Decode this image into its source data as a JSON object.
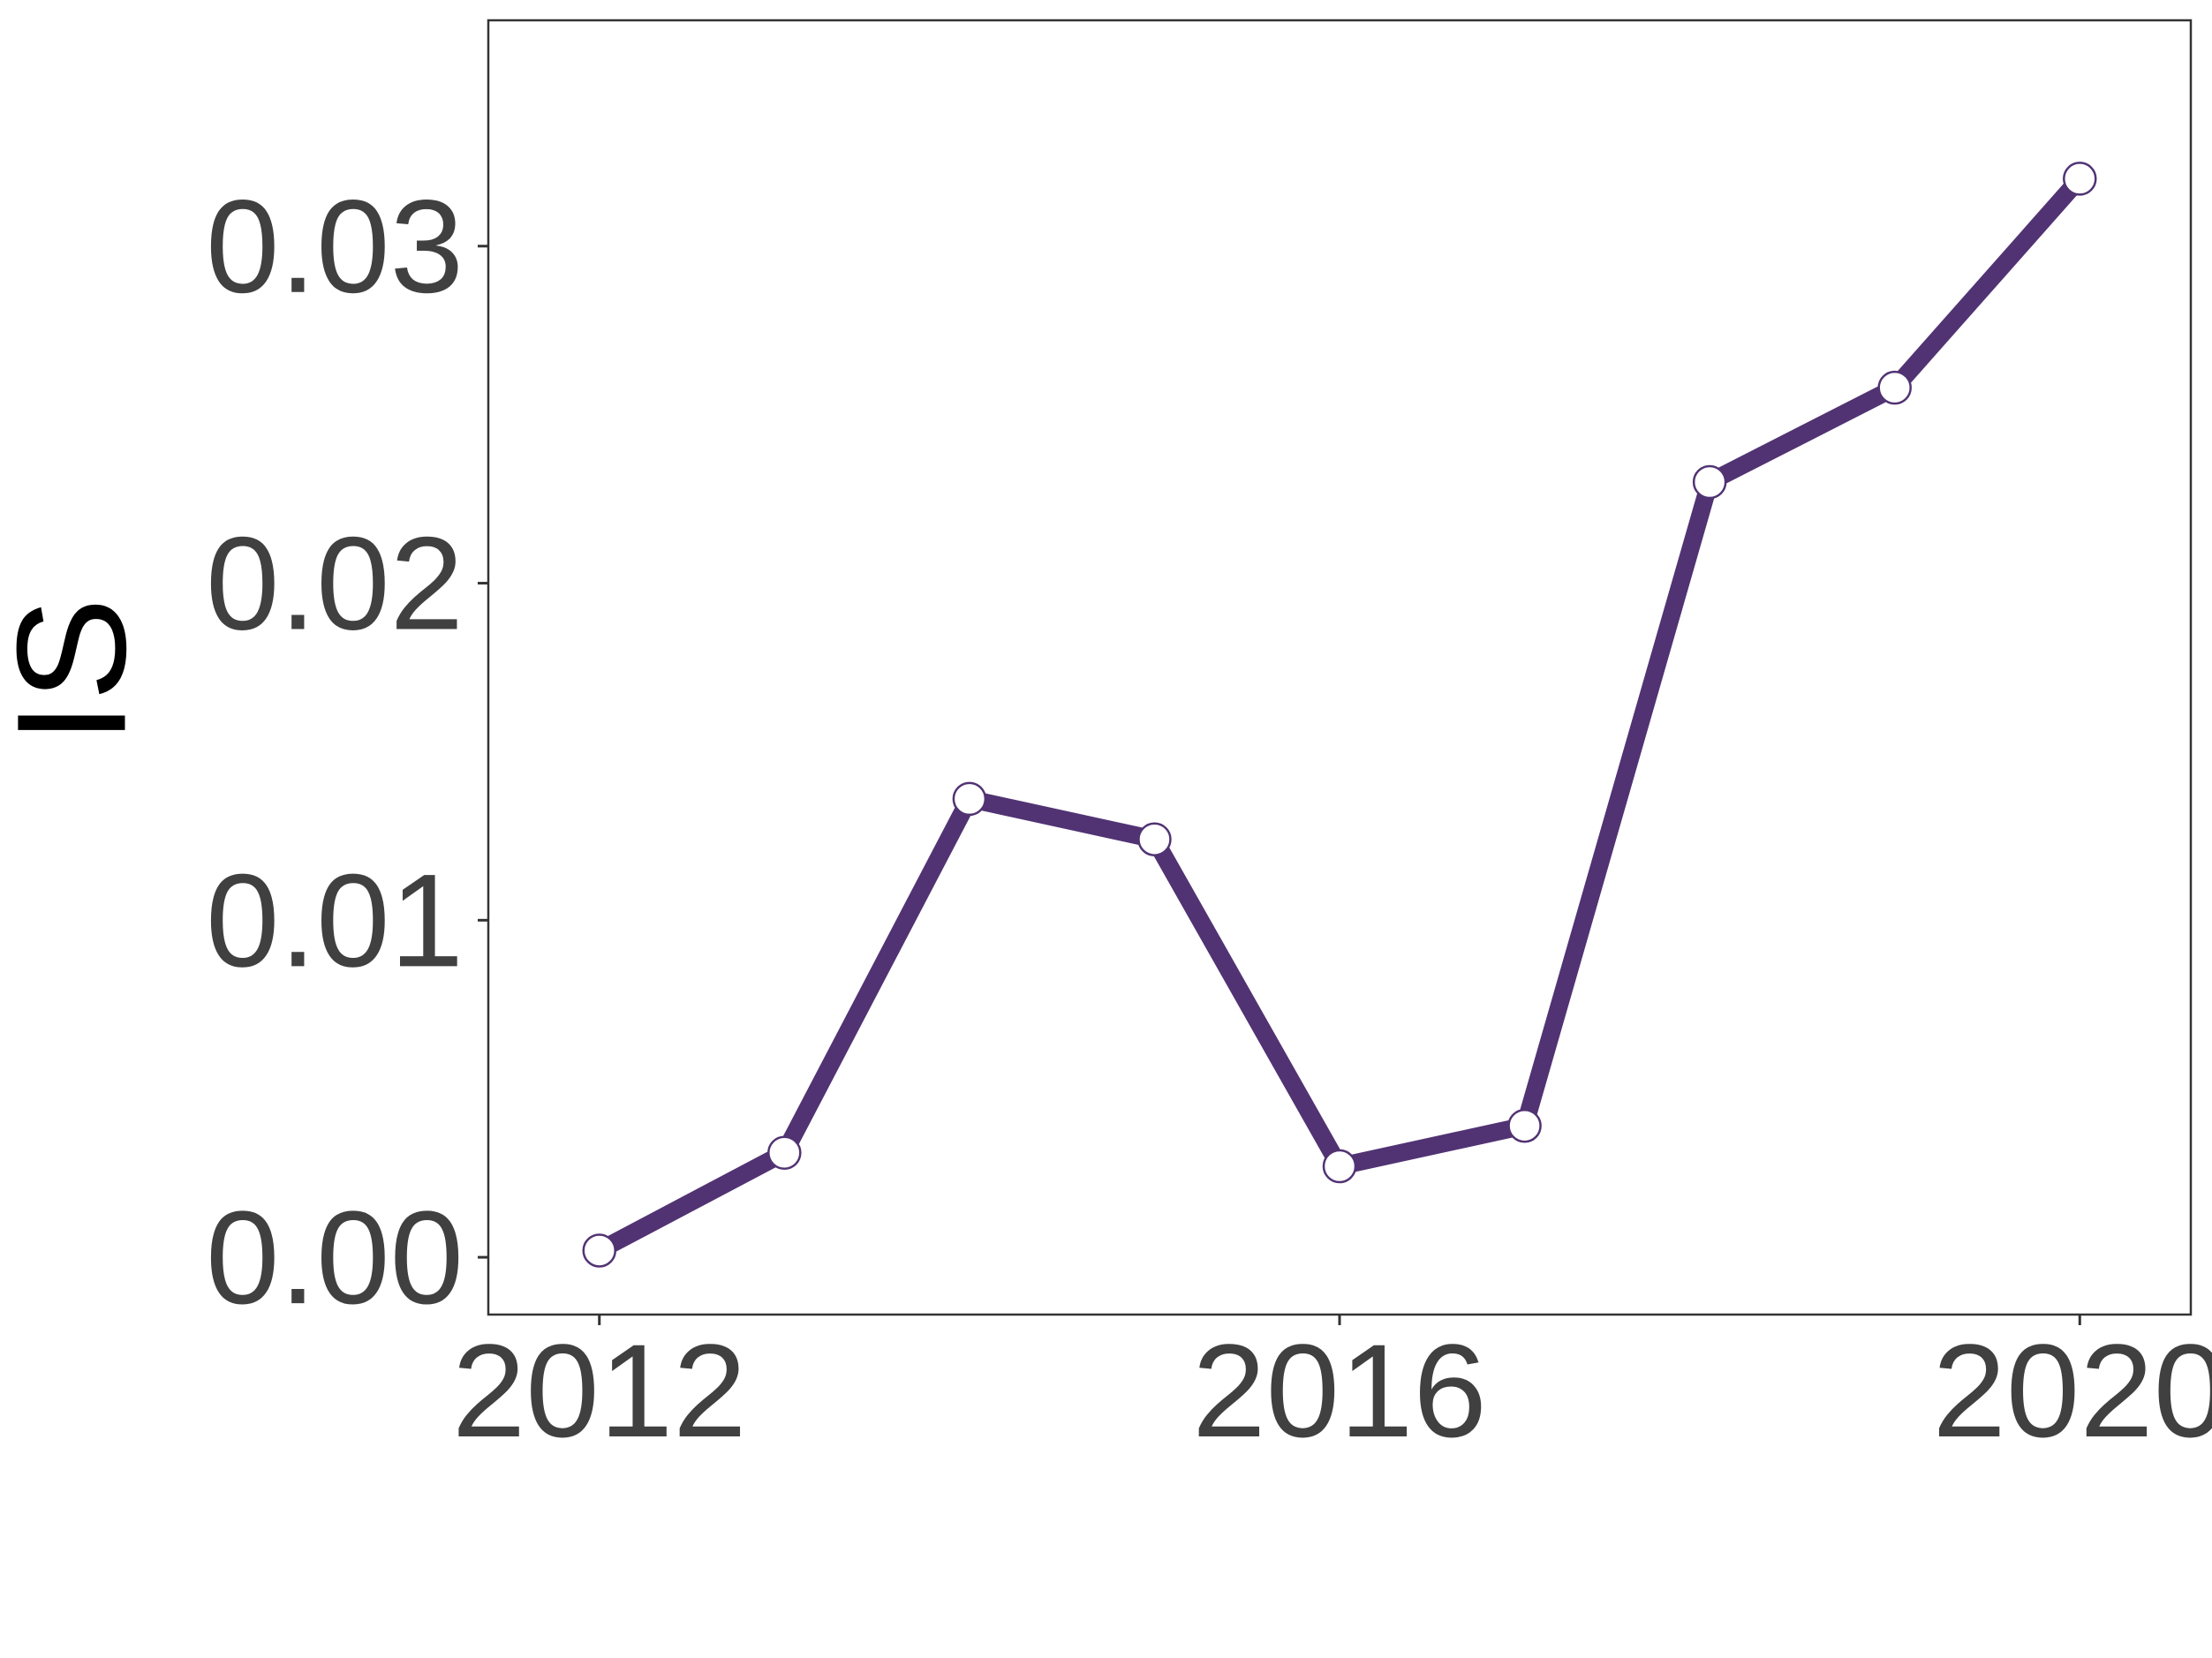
{
  "chart_data": {
    "type": "line",
    "title": "",
    "xlabel": "",
    "ylabel": "IS",
    "x": [
      2012,
      2013,
      2014,
      2015,
      2016,
      2017,
      2018,
      2019,
      2020
    ],
    "series": [
      {
        "name": "IS",
        "values": [
          0.0002,
          0.0031,
          0.0136,
          0.0124,
          0.0027,
          0.0039,
          0.023,
          0.0258,
          0.032
        ]
      }
    ],
    "xlim": [
      2011.4,
      2020.6
    ],
    "ylim": [
      -0.0017,
      0.0367
    ],
    "xticks": [
      2012,
      2016,
      2020
    ],
    "xtick_labels": [
      "2012",
      "2016",
      "2020"
    ],
    "yticks": [
      0,
      0.01,
      0.02,
      0.03
    ],
    "ytick_labels": [
      "0.00",
      "0.01",
      "0.02",
      "0.03"
    ],
    "grid": false,
    "legend": "none",
    "colors": {
      "line": "#513373",
      "marker_fill": "#ffffff",
      "marker_stroke": "#513373",
      "frame": "#333333",
      "tick_text": "#404040"
    }
  }
}
